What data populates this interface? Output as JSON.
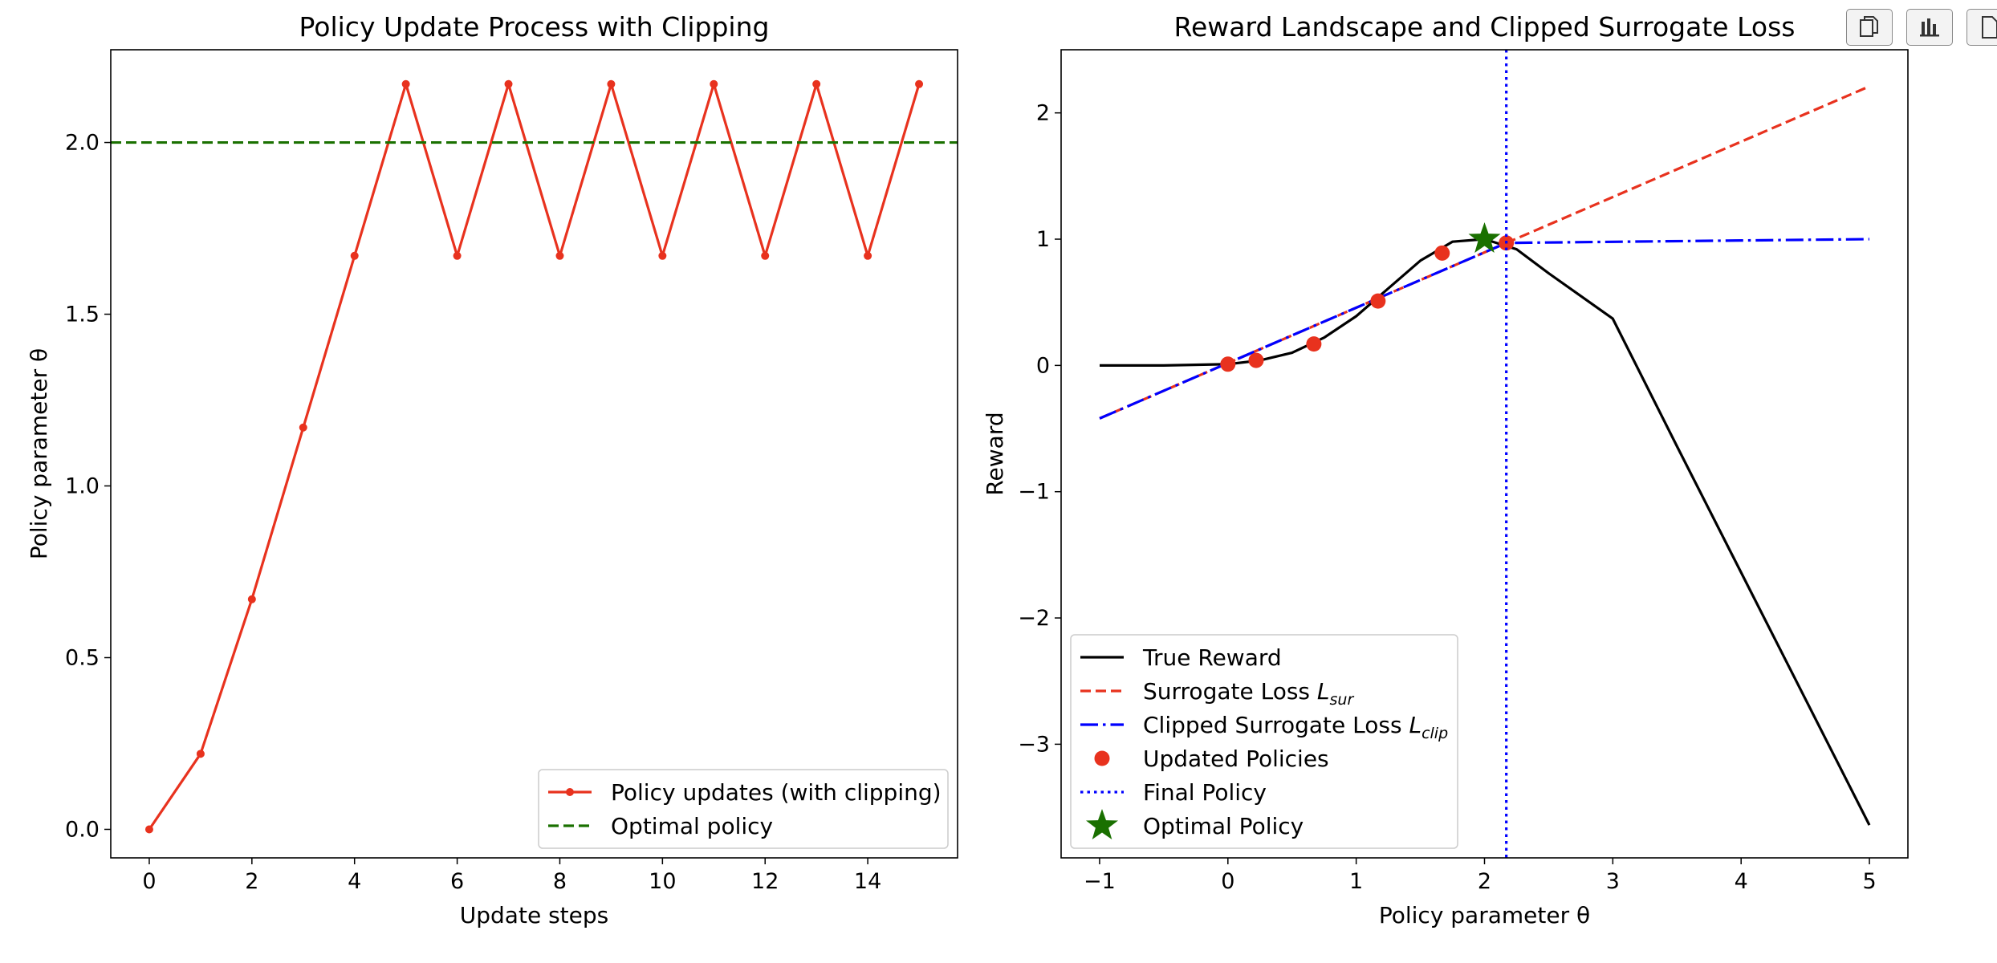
{
  "toolbar": {
    "buttons": [
      {
        "icon": "copy-icon",
        "label": ""
      },
      {
        "icon": "bar-chart-icon",
        "label": ""
      },
      {
        "icon": "document-icon",
        "label": ""
      }
    ]
  },
  "chart_data": [
    {
      "type": "line",
      "title": "Policy Update Process with Clipping",
      "xlabel": "Update steps",
      "ylabel": "Policy parameter θ",
      "xlim": [
        -0.75,
        15.75
      ],
      "ylim": [
        -0.083,
        2.27
      ],
      "xticks": [
        "0",
        "2",
        "4",
        "6",
        "8",
        "10",
        "12",
        "14"
      ],
      "xtick_values": [
        0,
        2,
        4,
        6,
        8,
        10,
        12,
        14
      ],
      "yticks": [
        "0.0",
        "0.5",
        "1.0",
        "1.5",
        "2.0"
      ],
      "ytick_values": [
        0,
        0.5,
        1,
        1.5,
        2
      ],
      "grid": false,
      "legend_position": "lower-right",
      "series": [
        {
          "name": "Policy updates (with clipping)",
          "color": "#e8321e",
          "style": "solid-with-dots",
          "x": [
            0,
            1,
            2,
            3,
            4,
            5,
            6,
            7,
            8,
            9,
            10,
            11,
            12,
            13,
            14,
            15
          ],
          "y": [
            0,
            0.22,
            0.67,
            1.17,
            1.67,
            2.17,
            1.67,
            2.17,
            1.67,
            2.17,
            1.67,
            2.17,
            1.67,
            2.17,
            1.67,
            2.17
          ]
        },
        {
          "name": "Optimal policy",
          "color": "#1a7000",
          "style": "dashed-horizontal",
          "y": 2.0
        }
      ]
    },
    {
      "type": "line",
      "title": "Reward Landscape and Clipped Surrogate Loss",
      "xlabel": "Policy parameter θ",
      "ylabel": "Reward",
      "xlim": [
        -1.3,
        5.3
      ],
      "ylim": [
        -3.9,
        2.5
      ],
      "xticks": [
        "−1",
        "0",
        "1",
        "2",
        "3",
        "4",
        "5"
      ],
      "xtick_values": [
        -1,
        0,
        1,
        2,
        3,
        4,
        5
      ],
      "yticks": [
        "−3",
        "−2",
        "−1",
        "0",
        "1",
        "2"
      ],
      "ytick_values": [
        -3,
        -2,
        -1,
        0,
        1,
        2
      ],
      "grid": false,
      "legend_position": "lower-left",
      "series": [
        {
          "name": "True Reward",
          "color": "#000000",
          "style": "solid",
          "x": [
            -1,
            -0.5,
            0,
            0.25,
            0.5,
            0.75,
            1,
            1.25,
            1.5,
            1.75,
            2,
            2.25,
            2.5,
            2.75,
            3,
            3.5,
            4,
            4.5,
            5
          ],
          "y": [
            0,
            0,
            0.01,
            0.04,
            0.1,
            0.22,
            0.39,
            0.61,
            0.83,
            0.98,
            1.0,
            0.92,
            0.73,
            0.55,
            0.37,
            -0.64,
            -1.64,
            -2.64,
            -3.64
          ]
        },
        {
          "name": "Surrogate Loss",
          "name_sub": "sur",
          "color": "#e8321e",
          "style": "dashed",
          "x": [
            -1,
            5
          ],
          "y": [
            -0.42,
            2.21
          ]
        },
        {
          "name": "Clipped Surrogate Loss",
          "name_sub": "clip",
          "color": "#0000ff",
          "style": "dashdot",
          "x": [
            -1,
            2.17,
            5
          ],
          "y": [
            -0.42,
            0.97,
            1.0
          ]
        },
        {
          "name": "Updated Policies",
          "color": "#e8321e",
          "style": "markers",
          "x": [
            0,
            0.22,
            0.67,
            1.17,
            1.67,
            2.17
          ],
          "y": [
            0.01,
            0.04,
            0.17,
            0.51,
            0.89,
            0.97
          ]
        },
        {
          "name": "Final Policy",
          "color": "#0000ff",
          "style": "dotted-vertical",
          "x": 2.17
        },
        {
          "name": "Optimal Policy",
          "color": "#1a7000",
          "style": "star",
          "x": [
            2.0
          ],
          "y": [
            1.0
          ]
        }
      ]
    }
  ]
}
